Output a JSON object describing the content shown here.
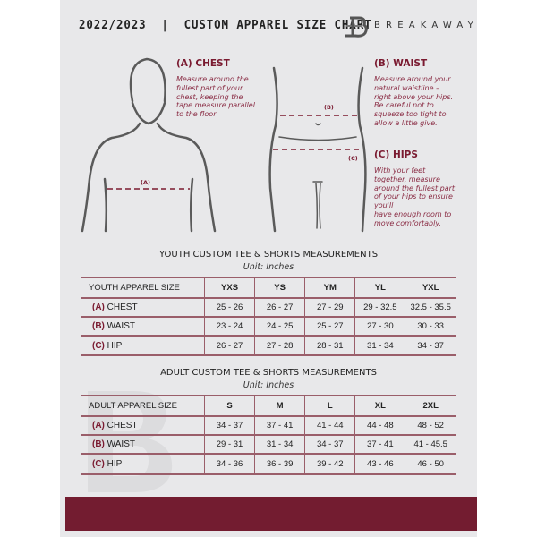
{
  "header": {
    "title": "2022/2023  |  CUSTOM APPAREL SIZE CHART",
    "brand": "BREAKAWAY"
  },
  "guide": {
    "chest": {
      "heading": "(A) CHEST",
      "text": [
        "Measure around the",
        "fullest part of your",
        "chest, keeping the",
        "tape measure parallel",
        "to the floor"
      ],
      "tag": "(A)"
    },
    "waist": {
      "heading": "(B) WAIST",
      "text": [
        "Measure around your",
        "natural waistline –",
        "right above your hips.",
        "Be careful not to",
        "squeeze too tight to",
        "allow a little give."
      ],
      "tag": "(B)"
    },
    "hips": {
      "heading": "(C) HIPS",
      "text": [
        "With your feet",
        "together, measure",
        "around the fullest part",
        "of your hips to ensure",
        "you'll",
        "have enough room to",
        "move comfortably."
      ],
      "tag": "(C)"
    }
  },
  "youth": {
    "title": "YOUTH CUSTOM TEE & SHORTS MEASUREMENTS",
    "unit": "Unit: Inches",
    "header": [
      "YOUTH APPAREL SIZE",
      "YXS",
      "YS",
      "YM",
      "YL",
      "YXL"
    ],
    "rows": [
      {
        "letter": "(A)",
        "name": "CHEST",
        "values": [
          "25 - 26",
          "26 - 27",
          "27 - 29",
          "29 - 32.5",
          "32.5 - 35.5"
        ]
      },
      {
        "letter": "(B)",
        "name": "WAIST",
        "values": [
          "23 - 24",
          "24 - 25",
          "25 - 27",
          "27 - 30",
          "30 - 33"
        ]
      },
      {
        "letter": "(C)",
        "name": "HIP",
        "values": [
          "26 - 27",
          "27 - 28",
          "28 - 31",
          "31 - 34",
          "34 - 37"
        ]
      }
    ]
  },
  "adult": {
    "title": "ADULT CUSTOM TEE & SHORTS MEASUREMENTS",
    "unit": "Unit: Inches",
    "header": [
      "ADULT APPAREL SIZE",
      "S",
      "M",
      "L",
      "XL",
      "2XL"
    ],
    "rows": [
      {
        "letter": "(A)",
        "name": "CHEST",
        "values": [
          "34 - 37",
          "37 - 41",
          "41 - 44",
          "44 - 48",
          "48 - 52"
        ]
      },
      {
        "letter": "(B)",
        "name": "WAIST",
        "values": [
          "29 - 31",
          "31 - 34",
          "34 - 37",
          "37 - 41",
          "41 - 45.5"
        ]
      },
      {
        "letter": "(C)",
        "name": "HIP",
        "values": [
          "34 - 36",
          "36 - 39",
          "39 - 42",
          "43 - 46",
          "46 - 50"
        ]
      }
    ]
  },
  "colors": {
    "accent": "#731c30",
    "panel": "#e8e8ea"
  }
}
